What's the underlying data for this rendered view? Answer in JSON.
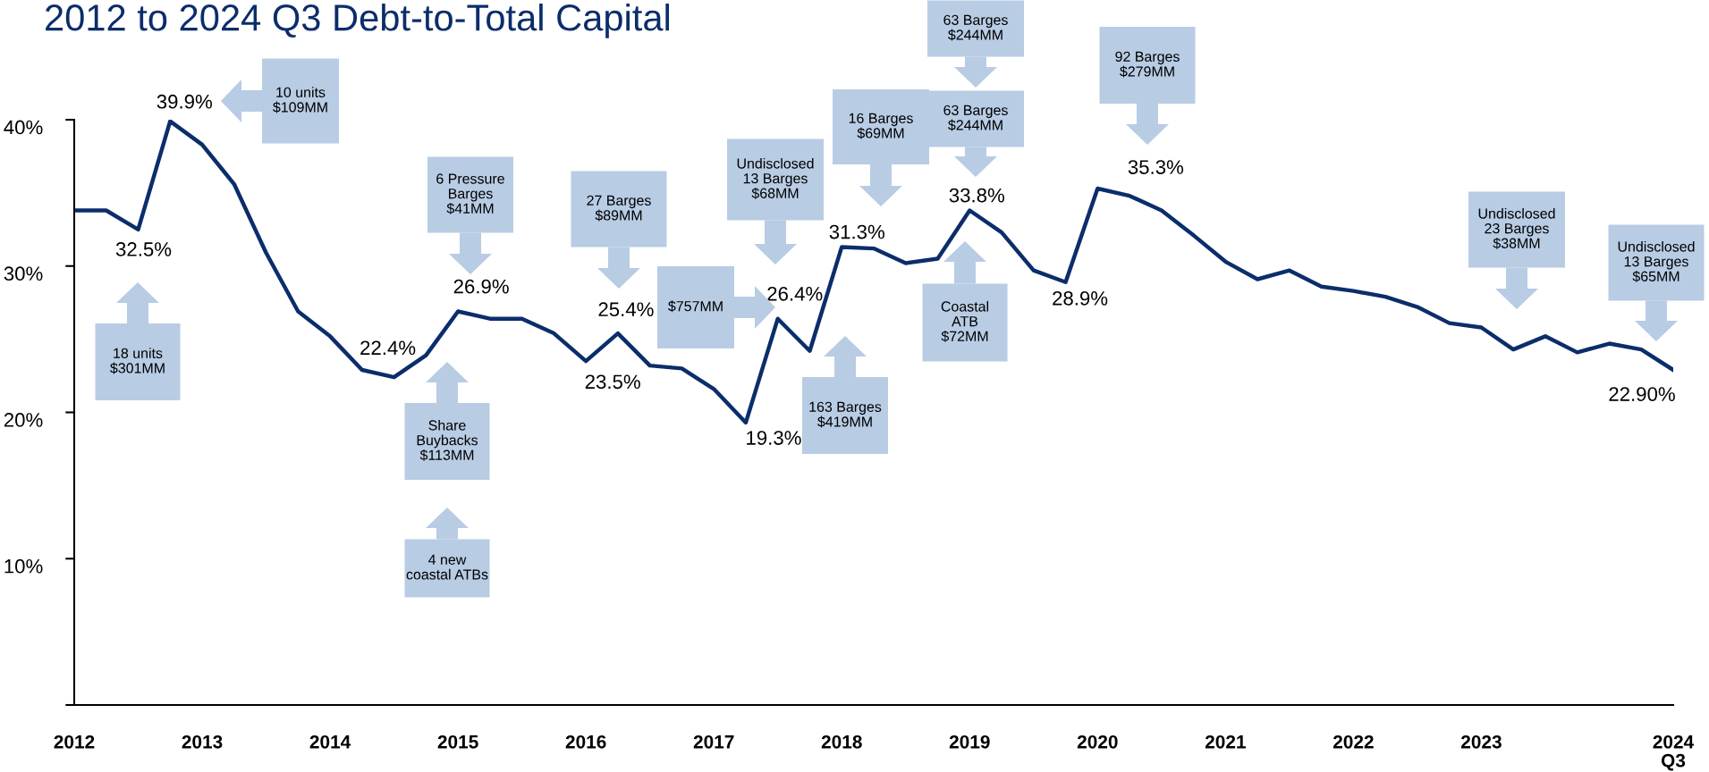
{
  "chart_data": {
    "type": "line",
    "title": "2012 to 2024 Q3 Debt-to-Total Capital",
    "categories": [
      "2012",
      null,
      null,
      null,
      "2013",
      null,
      null,
      null,
      "2014",
      null,
      null,
      null,
      "2015",
      null,
      null,
      null,
      "2016",
      null,
      null,
      null,
      "2017",
      null,
      null,
      null,
      "2018",
      null,
      null,
      null,
      "2019",
      null,
      null,
      null,
      "2020",
      null,
      null,
      null,
      "2021",
      null,
      null,
      null,
      "2022",
      null,
      null,
      null,
      "2023",
      null,
      null,
      null,
      null,
      null,
      "2024\nQ3"
    ],
    "series": [
      {
        "color": "#0b2d6b",
        "values": [
          33.8,
          33.8,
          32.5,
          39.9,
          38.3,
          35.6,
          30.9,
          26.9,
          25.2,
          22.9,
          22.4,
          23.9,
          26.9,
          26.4,
          26.4,
          25.4,
          23.5,
          25.4,
          23.2,
          23.0,
          21.6,
          19.3,
          26.4,
          24.2,
          31.3,
          31.2,
          30.2,
          30.5,
          33.8,
          32.3,
          29.7,
          28.9,
          35.3,
          34.8,
          33.8,
          32.1,
          30.3,
          29.1,
          29.7,
          28.6,
          28.3,
          27.9,
          27.2,
          26.1,
          25.8,
          24.3,
          25.2,
          24.1,
          24.7,
          24.3,
          22.9
        ],
        "value_labels": [
          null,
          null,
          "32.5%",
          "39.9%",
          null,
          null,
          null,
          null,
          null,
          null,
          "22.4%",
          null,
          "26.9%",
          null,
          null,
          null,
          "23.5%",
          "25.4%",
          null,
          null,
          null,
          "19.3%",
          "26.4%",
          null,
          "31.3%",
          null,
          null,
          null,
          "33.8%",
          null,
          null,
          "28.9%",
          "35.3%",
          null,
          null,
          null,
          null,
          null,
          null,
          null,
          null,
          null,
          null,
          null,
          null,
          null,
          null,
          null,
          null,
          null,
          "22.90%"
        ]
      }
    ],
    "ylim": [
      0,
      40
    ],
    "yticks": [
      {
        "value": 0,
        "label": null
      },
      {
        "value": 10,
        "label": "10%"
      },
      {
        "value": 20,
        "label": "20%"
      },
      {
        "value": 30,
        "label": "30%"
      },
      {
        "value": 40,
        "label": "40%"
      }
    ],
    "grid": false,
    "line_style": "solid",
    "marker": "none",
    "annotations": [
      "18 units\n$301MM",
      "10 units\n$109MM",
      "6 Pressure\nBarges\n$41MM",
      "Share\nBuybacks\n$113MM",
      "4 new\ncoastal ATBs",
      "27 Barges\n$89MM",
      "$757MM",
      "Undisclosed\n13 Barges\n$68MM",
      "16 Barges\n$69MM",
      "163 Barges\n$419MM",
      "63 Barges\n$244MM",
      "63 Barges\n$244MM",
      "Coastal\nATB\n$72MM",
      "92 Barges\n$279MM",
      "Undisclosed\n23 Barges\n$38MM",
      "Undisclosed\n13 Barges\n$65MM"
    ]
  }
}
